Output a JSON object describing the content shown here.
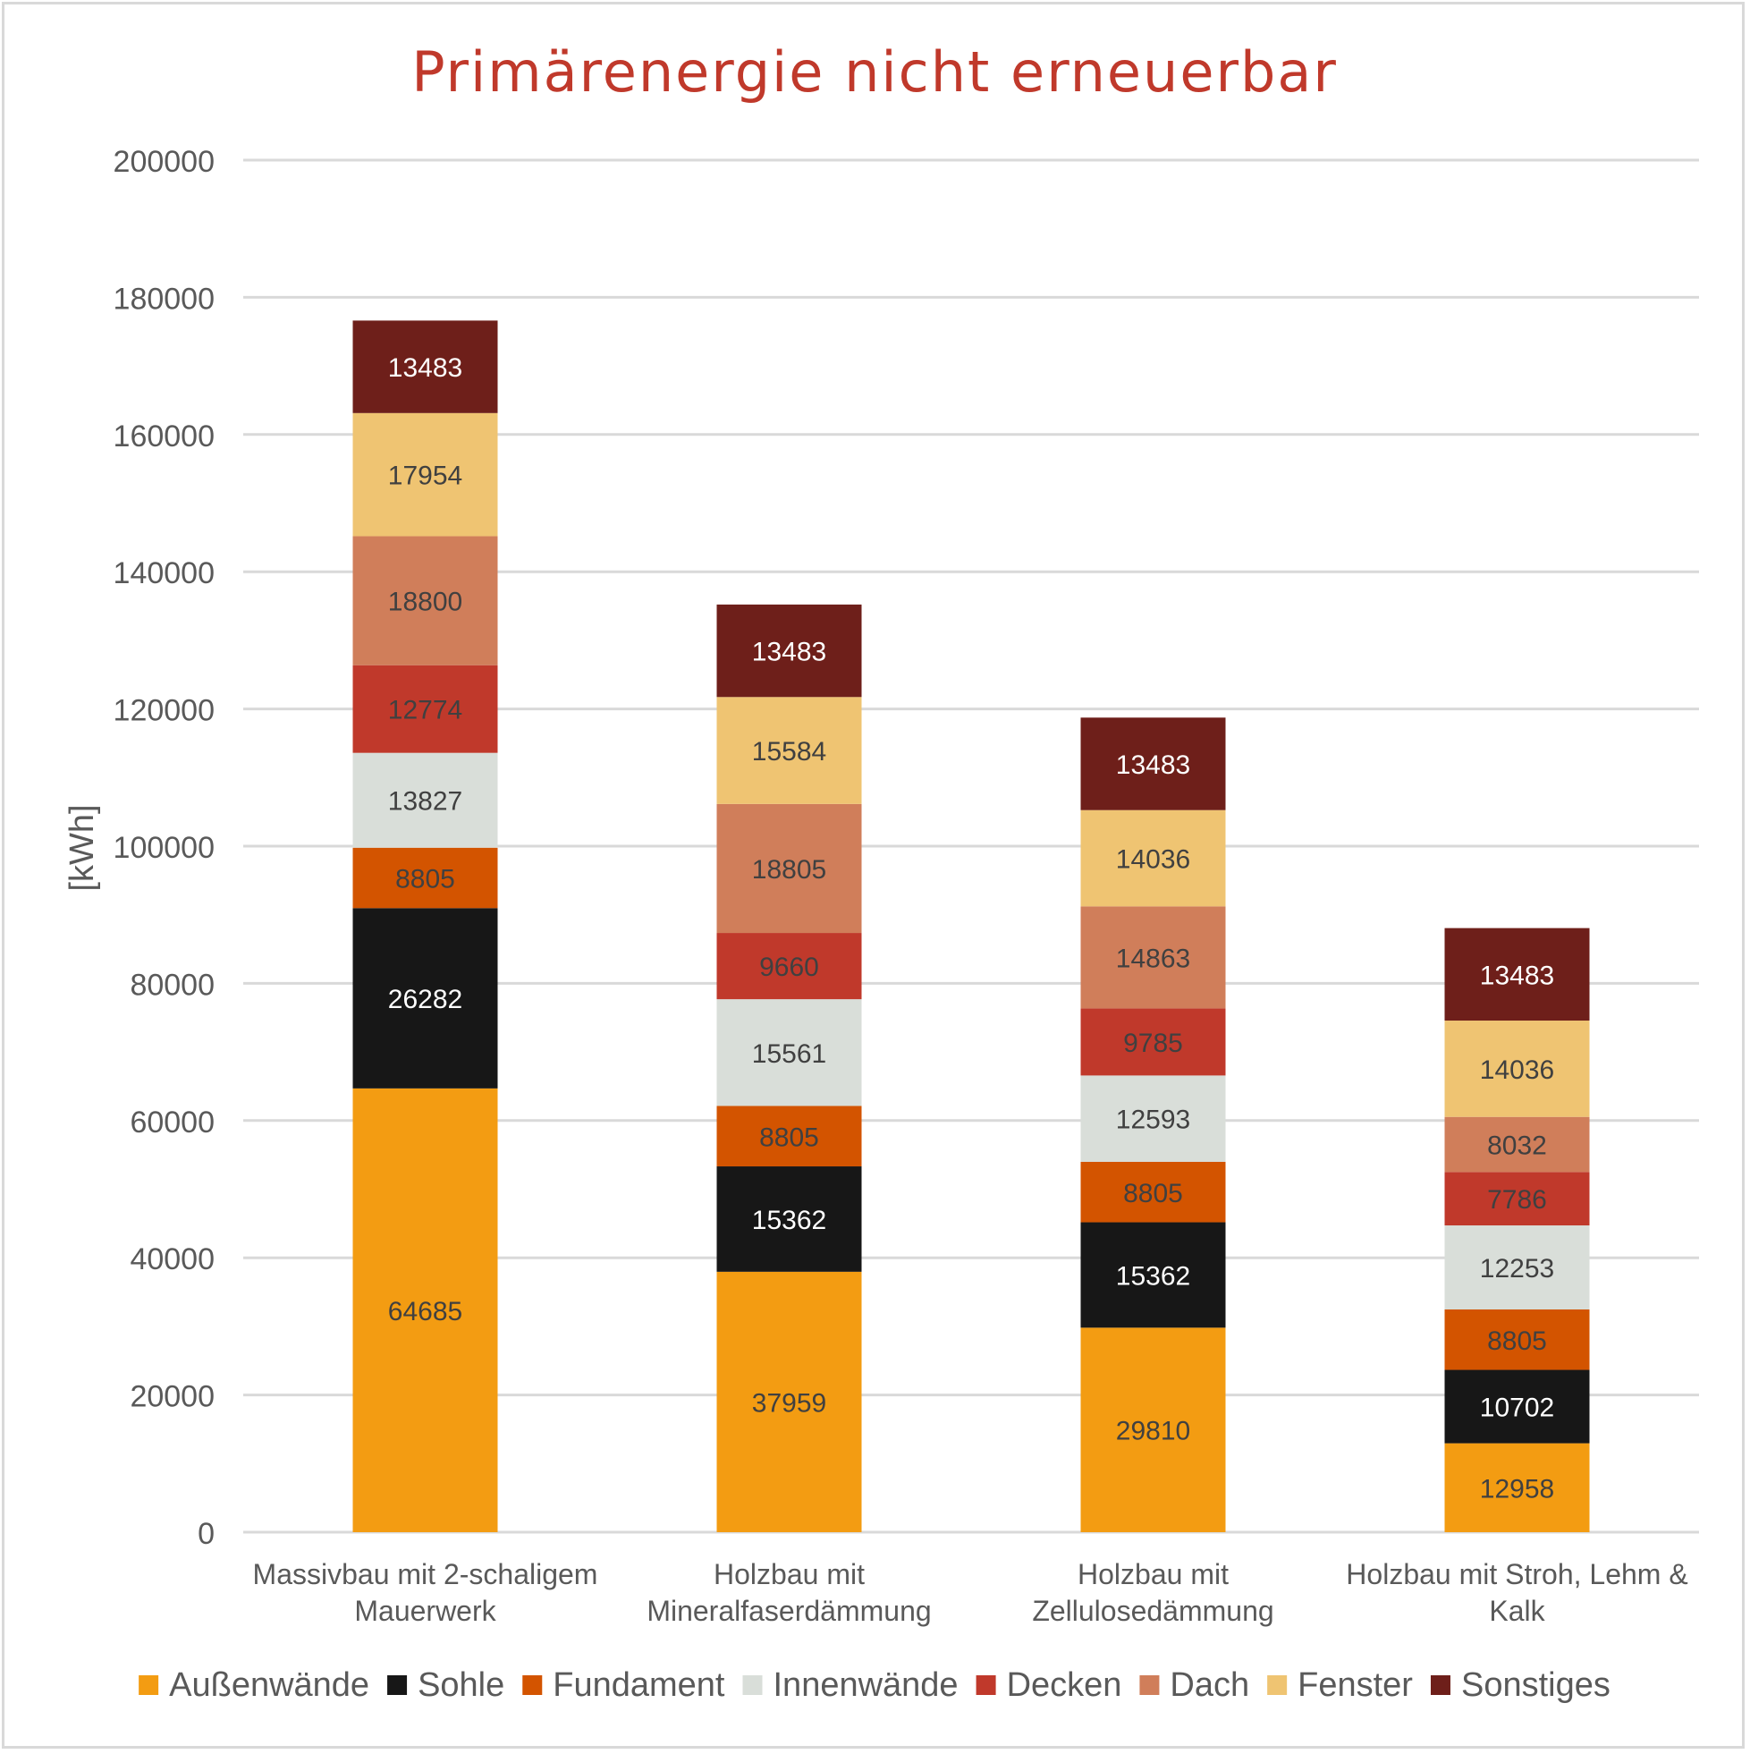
{
  "chart_data": {
    "type": "bar",
    "stacked": true,
    "title": "Primärenergie nicht erneuerbar",
    "xlabel": "",
    "ylabel": "[kWh]",
    "ylim": [
      0,
      200000
    ],
    "yticks": [
      0,
      20000,
      40000,
      60000,
      80000,
      100000,
      120000,
      140000,
      160000,
      180000,
      200000
    ],
    "ytick_labels": [
      "0",
      "20000",
      "40000",
      "60000",
      "80000",
      "100000",
      "120000",
      "140000",
      "160000",
      "180000",
      "200000"
    ],
    "grid": true,
    "legend_position": "bottom",
    "categories": [
      [
        "Massivbau mit 2-schaligem",
        "Mauerwerk"
      ],
      [
        "Holzbau mit",
        "Mineralfaserdämmung"
      ],
      [
        "Holzbau mit",
        "Zellulosedämmung"
      ],
      [
        "Holzbau mit Stroh, Lehm &",
        "Kalk"
      ]
    ],
    "series": [
      {
        "name": "Außenwände",
        "color": "#F39C12",
        "label_color": "#404040",
        "values": [
          64685,
          37959,
          29810,
          12958
        ]
      },
      {
        "name": "Sohle",
        "color": "#171717",
        "label_color": "#FFFFFF",
        "values": [
          26282,
          15362,
          15362,
          10702
        ]
      },
      {
        "name": "Fundament",
        "color": "#D35400",
        "label_color": "#404040",
        "values": [
          8805,
          8805,
          8805,
          8805
        ]
      },
      {
        "name": "Innenwände",
        "color": "#D9DED9",
        "label_color": "#404040",
        "values": [
          13827,
          15561,
          12593,
          12253
        ]
      },
      {
        "name": "Decken",
        "color": "#C0392B",
        "label_color": "#404040",
        "values": [
          12774,
          9660,
          9785,
          7786
        ]
      },
      {
        "name": "Dach",
        "color": "#D07E5A",
        "label_color": "#404040",
        "values": [
          18800,
          18805,
          14863,
          8032
        ]
      },
      {
        "name": "Fenster",
        "color": "#EFC472",
        "label_color": "#404040",
        "values": [
          17954,
          15584,
          14036,
          14036
        ]
      },
      {
        "name": "Sonstiges",
        "color": "#6E1F1A",
        "label_color": "#FFFFFF",
        "values": [
          13483,
          13483,
          13483,
          13483
        ]
      }
    ]
  }
}
